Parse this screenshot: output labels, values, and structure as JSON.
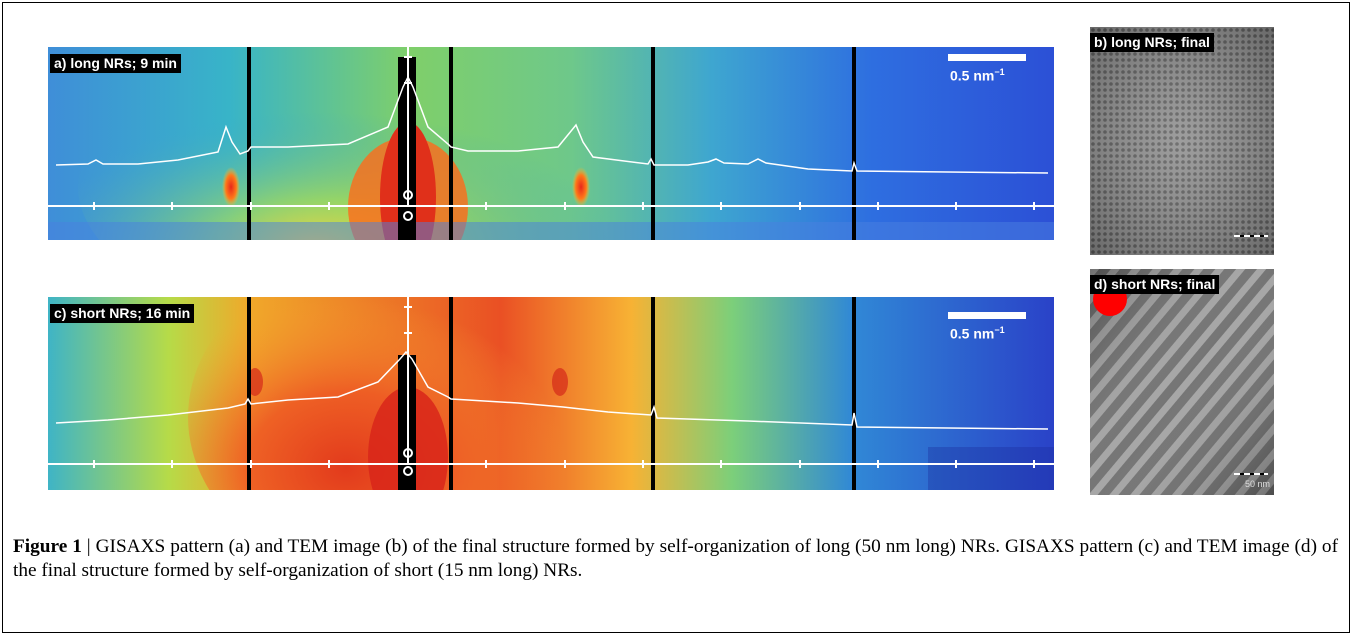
{
  "panels": {
    "a": {
      "label": "a) long NRs; 9 min",
      "scale_label": "0.5 nm",
      "scale_exp": "−1",
      "scheme": "cool"
    },
    "b": {
      "label": "b) long NRs; final"
    },
    "c": {
      "label": "c) short NRs; 16 min",
      "scale_label": "0.5 nm",
      "scale_exp": "−1",
      "scheme": "hot"
    },
    "d": {
      "label": "d) short NRs; final",
      "scale_text": "50 nm"
    }
  },
  "caption": {
    "bold": "Figure 1",
    "text": " | GISAXS pattern (a) and TEM image (b) of the final structure formed by self-organization of long (50 nm long) NRs. GISAXS pattern (c) and TEM image (d) of the final structure formed by self-organization of short (15 nm long) NRs."
  },
  "colors": {
    "background_blue": "#2d5fd8",
    "intense_red": "#e0301a",
    "profile_line": "#ffffff",
    "separator": "#000000",
    "tem_gray": "#8a8a8a",
    "marker_red": "#ff0000",
    "marker_blue": "#1e46c8"
  }
}
